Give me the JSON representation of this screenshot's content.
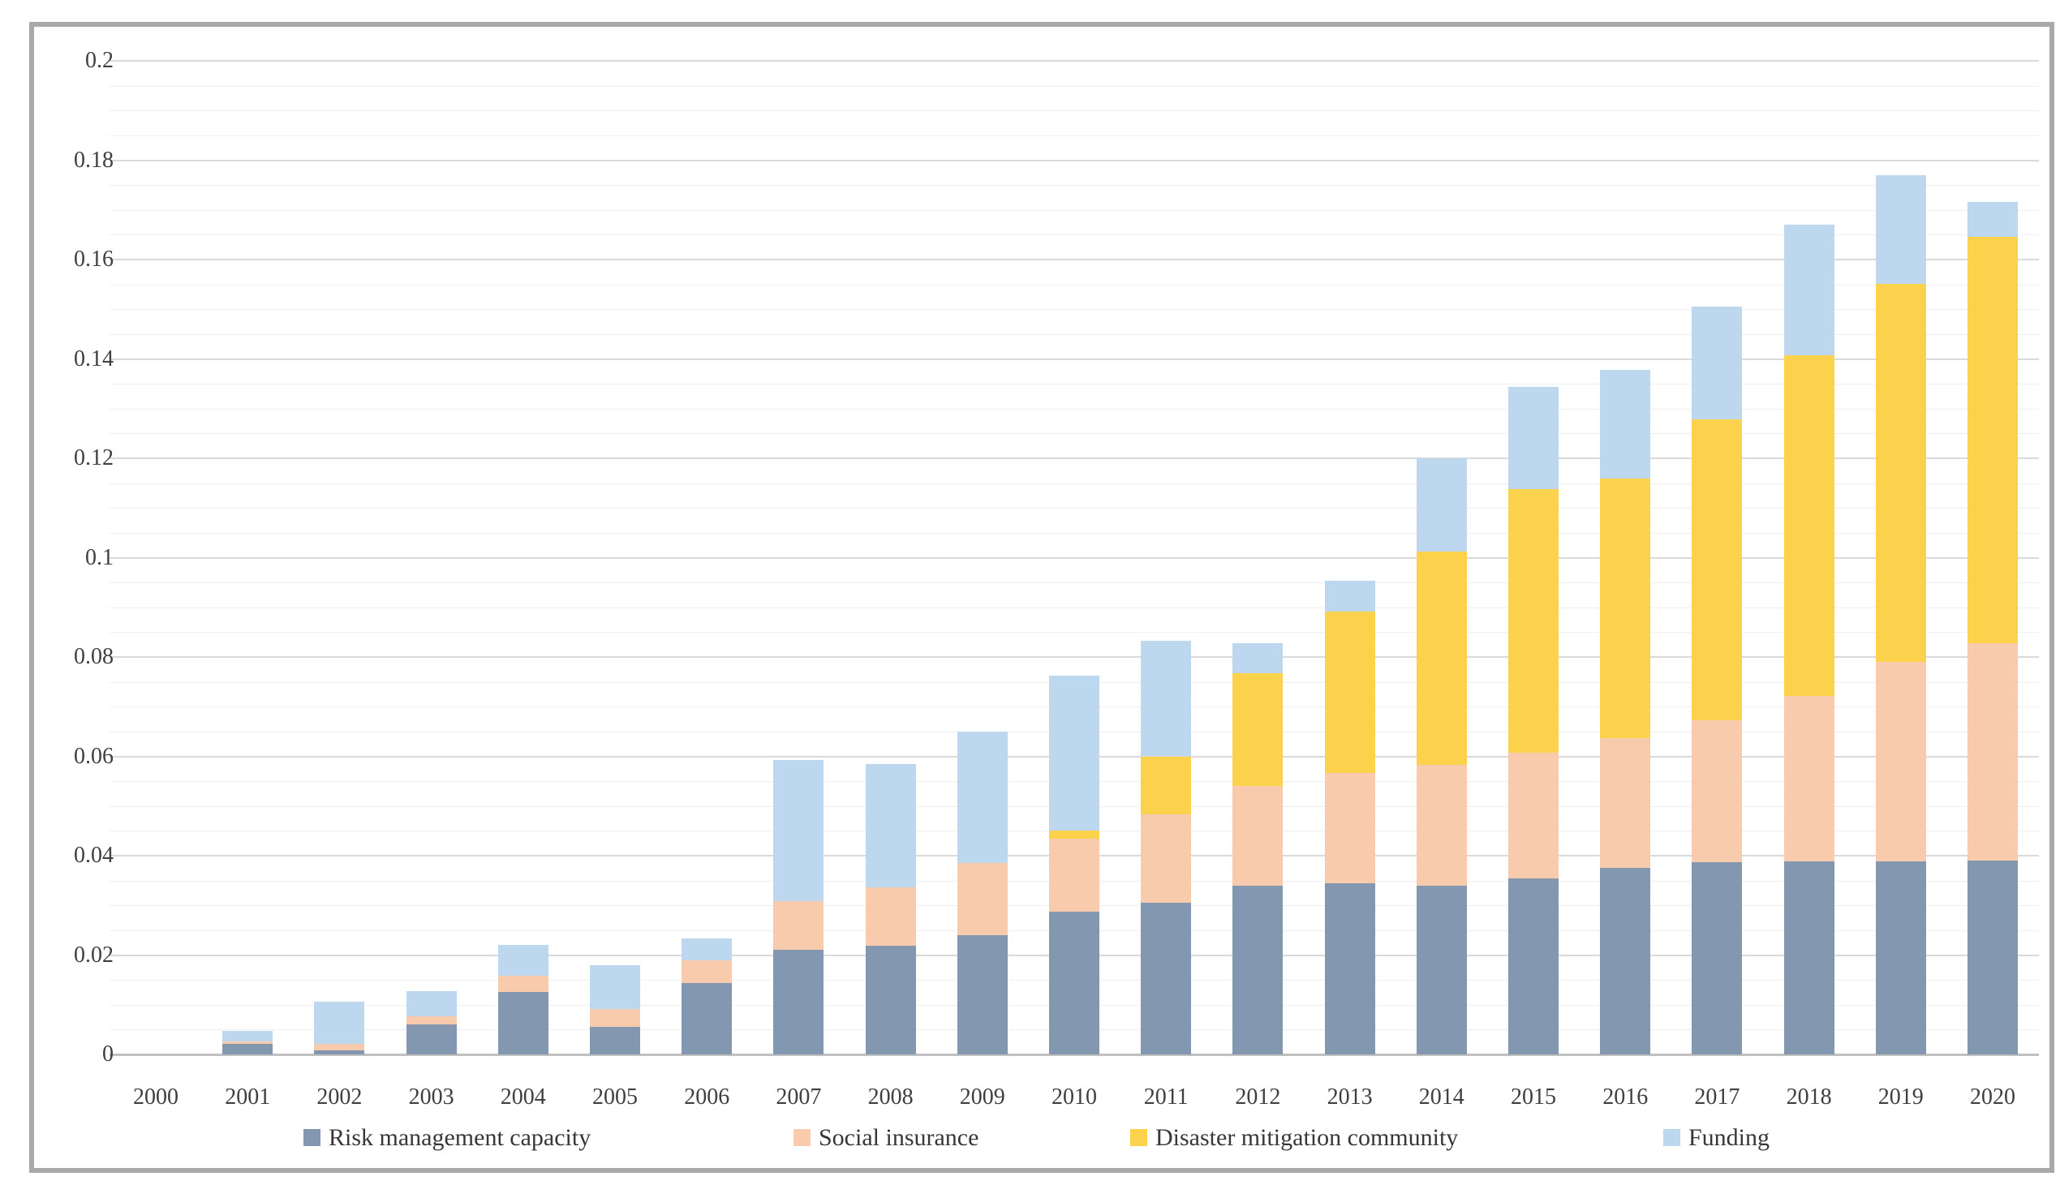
{
  "chart_data": {
    "type": "bar",
    "stacked": true,
    "orientation": "vertical",
    "title": "",
    "xlabel": "",
    "ylabel": "",
    "ylim": [
      0,
      0.2
    ],
    "y_major_step": 0.02,
    "y_minor_step": 0.005,
    "grid": "horizontal major and minor gridlines, no vertical gridlines",
    "legend_position": "bottom",
    "y_major_ticks": [
      "0",
      "0.02",
      "0.04",
      "0.06",
      "0.08",
      "0.1",
      "0.12",
      "0.14",
      "0.16",
      "0.18",
      "0.2"
    ],
    "categories": [
      "2000",
      "2001",
      "2002",
      "2003",
      "2004",
      "2005",
      "2006",
      "2007",
      "2008",
      "2009",
      "2010",
      "2011",
      "2012",
      "2013",
      "2014",
      "2015",
      "2016",
      "2017",
      "2018",
      "2019",
      "2020"
    ],
    "series": [
      {
        "name": "Risk management capacity",
        "color": "#8497B0",
        "values": [
          0,
          0.0022,
          0.0008,
          0.0061,
          0.0125,
          0.0056,
          0.0143,
          0.0211,
          0.0219,
          0.024,
          0.0288,
          0.0306,
          0.0339,
          0.0344,
          0.0339,
          0.0354,
          0.0376,
          0.0387,
          0.0388,
          0.0389,
          0.039
        ]
      },
      {
        "name": "Social insurance",
        "color": "#F8CBAD",
        "values": [
          0,
          0.0004,
          0.0014,
          0.0015,
          0.0034,
          0.0036,
          0.0046,
          0.0097,
          0.0118,
          0.0145,
          0.0146,
          0.0178,
          0.0201,
          0.0223,
          0.0244,
          0.0254,
          0.0261,
          0.0285,
          0.0333,
          0.0402,
          0.0438
        ]
      },
      {
        "name": "Disaster mitigation community",
        "color": "#FCD24C",
        "values": [
          0,
          0,
          0,
          0,
          0,
          0,
          0,
          0,
          0,
          0,
          0.0017,
          0.0116,
          0.0228,
          0.0324,
          0.0429,
          0.053,
          0.0522,
          0.0606,
          0.0687,
          0.076,
          0.0818
        ]
      },
      {
        "name": "Funding",
        "color": "#BDD7EE",
        "values": [
          0,
          0.0021,
          0.0084,
          0.0051,
          0.0061,
          0.0088,
          0.0044,
          0.0284,
          0.0248,
          0.0265,
          0.0312,
          0.0233,
          0.0059,
          0.0062,
          0.0188,
          0.0205,
          0.0219,
          0.0227,
          0.0263,
          0.0218,
          0.007
        ]
      }
    ],
    "totals": [
      0,
      0.0047,
      0.0106,
      0.0127,
      0.022,
      0.018,
      0.0233,
      0.0592,
      0.0585,
      0.065,
      0.0763,
      0.0833,
      0.0827,
      0.0953,
      0.12,
      0.1343,
      0.1378,
      0.1505,
      0.1671,
      0.1769,
      0.1716
    ]
  },
  "colors": {
    "frame_border": "#a9a9a9",
    "gridline_major": "#dadada",
    "gridline_minor": "#efefef",
    "axis_baseline": "#c0c0c0",
    "tick_text": "#404040",
    "legend_text": "#373737",
    "background": "#ffffff"
  }
}
